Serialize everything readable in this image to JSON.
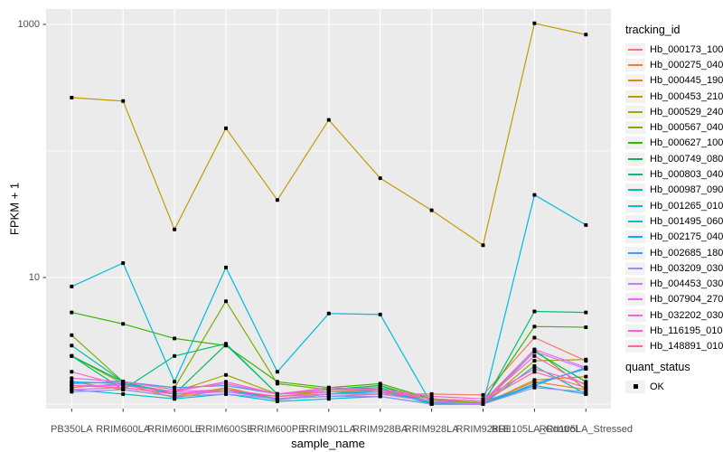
{
  "chart_data": {
    "type": "line",
    "title": "",
    "xlabel": "sample_name",
    "ylabel": "FPKM + 1",
    "y_scale": "log10",
    "ylim": [
      0.9,
      1450
    ],
    "grid": true,
    "legend_position": "right",
    "y_ticks": [
      1000,
      10
    ],
    "y_tick_labels": [
      "1000",
      "10"
    ],
    "y_minor_gridlines": [
      1,
      100
    ],
    "panel_background": "#ebebeb",
    "gridline_color": "#ffffff",
    "point_color": "#000000",
    "legend_titles": {
      "color": "tracking_id",
      "shape": "quant_status"
    },
    "quant_status": {
      "label": "OK"
    },
    "categories": [
      "PB350LA",
      "RRIM600LA",
      "RRIM600LE",
      "RRIM600SE",
      "RRIM600PE",
      "RRIM901LA",
      "RRIM928BA",
      "RRIM928LA",
      "RRIM928LE",
      "RRII105LA_Control",
      "RRII105LA_Stressed"
    ],
    "series": [
      {
        "name": "Hb_000173_100",
        "color": "#F8766D",
        "values": [
          1.4,
          1.35,
          1.2,
          1.25,
          1.15,
          1.2,
          1.2,
          1.2,
          1.18,
          3.35,
          2.2
        ]
      },
      {
        "name": "Hb_000275_040",
        "color": "#EA8331",
        "values": [
          1.35,
          1.45,
          1.12,
          1.3,
          1.1,
          1.15,
          1.2,
          1.05,
          1.02,
          1.5,
          1.3
        ]
      },
      {
        "name": "Hb_000445_190",
        "color": "#D89000",
        "values": [
          1.5,
          1.3,
          1.15,
          1.35,
          1.1,
          1.2,
          1.25,
          1.02,
          1.0,
          1.55,
          1.65
        ]
      },
      {
        "name": "Hb_000453_210",
        "color": "#C09B00",
        "values": [
          264,
          248,
          24,
          151,
          41,
          176,
          61,
          34,
          18,
          1020,
          830
        ]
      },
      {
        "name": "Hb_000529_240",
        "color": "#A3A500",
        "values": [
          2.4,
          1.45,
          1.25,
          1.7,
          1.2,
          1.25,
          1.3,
          1.05,
          1.0,
          2.2,
          2.25
        ]
      },
      {
        "name": "Hb_000567_040",
        "color": "#7CAE00",
        "values": [
          3.5,
          1.5,
          1.35,
          6.5,
          1.45,
          1.3,
          1.4,
          1.08,
          1.02,
          2.7,
          1.3
        ]
      },
      {
        "name": "Hb_000627_100",
        "color": "#39B600",
        "values": [
          5.3,
          4.3,
          3.3,
          2.9,
          1.5,
          1.35,
          1.45,
          1.1,
          1.05,
          4.1,
          4.05
        ]
      },
      {
        "name": "Hb_000749_080",
        "color": "#00BB4E",
        "values": [
          2.4,
          1.5,
          1.2,
          2.95,
          1.2,
          1.3,
          1.35,
          1.02,
          1.0,
          2.6,
          1.5
        ]
      },
      {
        "name": "Hb_000803_040",
        "color": "#00BF7D",
        "values": [
          2.4,
          1.3,
          2.4,
          3.0,
          1.2,
          1.3,
          1.4,
          1.0,
          1.0,
          5.4,
          5.3
        ]
      },
      {
        "name": "Hb_000987_090",
        "color": "#00C1A3",
        "values": [
          2.9,
          1.5,
          1.2,
          1.3,
          1.08,
          1.2,
          1.3,
          1.0,
          1.0,
          2.0,
          1.2
        ]
      },
      {
        "name": "Hb_001265_010",
        "color": "#00BFC4",
        "values": [
          1.3,
          1.2,
          1.1,
          1.2,
          1.05,
          1.1,
          1.15,
          1.0,
          1.0,
          1.4,
          1.2
        ]
      },
      {
        "name": "Hb_001495_060",
        "color": "#00BAE0",
        "values": [
          8.5,
          13,
          1.5,
          12,
          1.8,
          5.2,
          5.1,
          1.0,
          1.0,
          45,
          26
        ]
      },
      {
        "name": "Hb_002175_040",
        "color": "#00B0F6",
        "values": [
          1.5,
          1.45,
          1.2,
          1.3,
          1.1,
          1.2,
          1.25,
          1.05,
          1.0,
          1.45,
          1.9
        ]
      },
      {
        "name": "Hb_002685_180",
        "color": "#35A2FF",
        "values": [
          1.45,
          1.5,
          1.35,
          1.4,
          1.2,
          1.3,
          1.3,
          1.1,
          1.05,
          1.4,
          1.95
        ]
      },
      {
        "name": "Hb_003209_030",
        "color": "#9590FF",
        "values": [
          1.25,
          1.3,
          1.15,
          1.2,
          1.1,
          1.15,
          1.15,
          1.0,
          1.0,
          1.35,
          1.25
        ]
      },
      {
        "name": "Hb_004453_030",
        "color": "#C77CFF",
        "values": [
          1.3,
          1.35,
          1.2,
          1.25,
          1.1,
          1.2,
          1.2,
          1.05,
          1.0,
          2.6,
          1.9
        ]
      },
      {
        "name": "Hb_007904_270",
        "color": "#E76BF3",
        "values": [
          1.4,
          1.4,
          1.25,
          1.3,
          1.15,
          1.25,
          1.25,
          1.1,
          1.05,
          2.7,
          1.95
        ]
      },
      {
        "name": "Hb_032202_030",
        "color": "#FA62DB",
        "values": [
          1.6,
          1.5,
          1.3,
          1.45,
          1.2,
          1.3,
          1.3,
          1.1,
          1.05,
          2.4,
          1.4
        ]
      },
      {
        "name": "Hb_116195_010",
        "color": "#FF61CC",
        "values": [
          1.8,
          1.4,
          1.25,
          1.5,
          1.2,
          1.35,
          1.3,
          1.15,
          1.1,
          1.9,
          1.45
        ]
      },
      {
        "name": "Hb_148891_010",
        "color": "#FF67A4",
        "values": [
          1.4,
          1.35,
          1.2,
          1.3,
          1.15,
          1.25,
          1.25,
          1.1,
          1.05,
          1.8,
          1.35
        ]
      }
    ]
  }
}
